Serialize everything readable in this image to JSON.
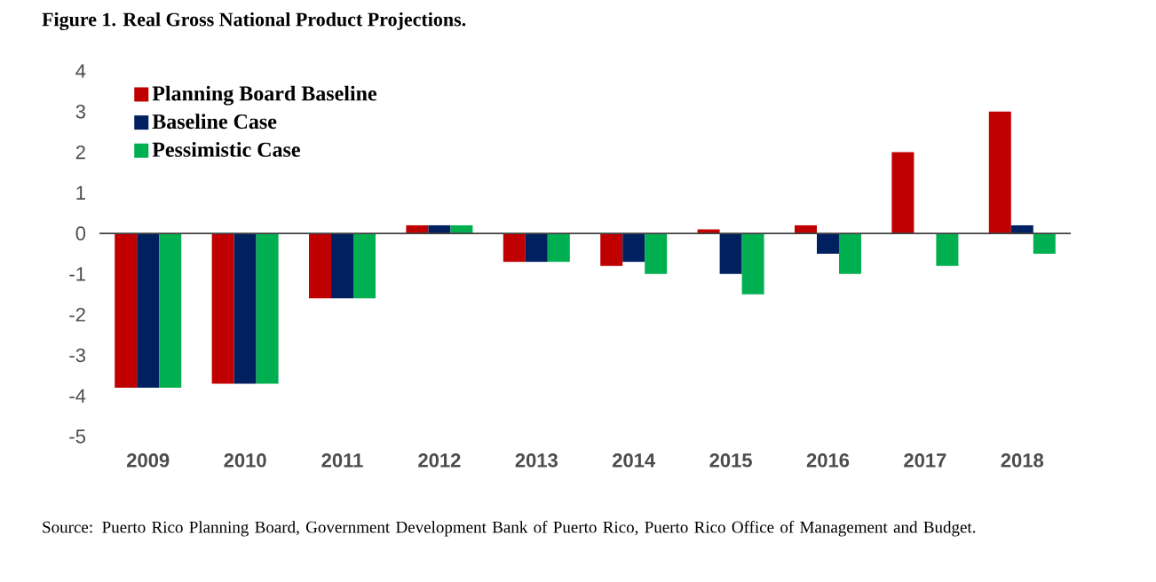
{
  "chart_data": {
    "type": "bar",
    "title": "Figure 1. Real Gross National Product Projections.",
    "categories": [
      "2009",
      "2010",
      "2011",
      "2012",
      "2013",
      "2014",
      "2015",
      "2016",
      "2017",
      "2018"
    ],
    "series": [
      {
        "name": "Planning Board Baseline",
        "color": "#c00000",
        "values": [
          -3.8,
          -3.7,
          -1.6,
          0.2,
          -0.7,
          -0.8,
          0.1,
          0.2,
          2.0,
          3.0
        ]
      },
      {
        "name": "Baseline Case",
        "color": "#002060",
        "values": [
          -3.8,
          -3.7,
          -1.6,
          0.2,
          -0.7,
          -0.7,
          -1.0,
          -0.5,
          0,
          0.2
        ]
      },
      {
        "name": "Pessimistic Case",
        "color": "#00b050",
        "values": [
          -3.8,
          -3.7,
          -1.6,
          0.2,
          -0.7,
          -1.0,
          -1.5,
          -1.0,
          -0.8,
          -0.5
        ]
      }
    ],
    "ylim": [
      -5,
      4
    ],
    "yticks": [
      -5,
      -4,
      -3,
      -2,
      -1,
      0,
      1,
      2,
      3,
      4
    ],
    "legend": "top left",
    "annotations": [
      "Source: Puerto Rico Planning Board, Government Development Bank of Puerto Rico, Puerto Rico Office of Management and Budget."
    ]
  }
}
